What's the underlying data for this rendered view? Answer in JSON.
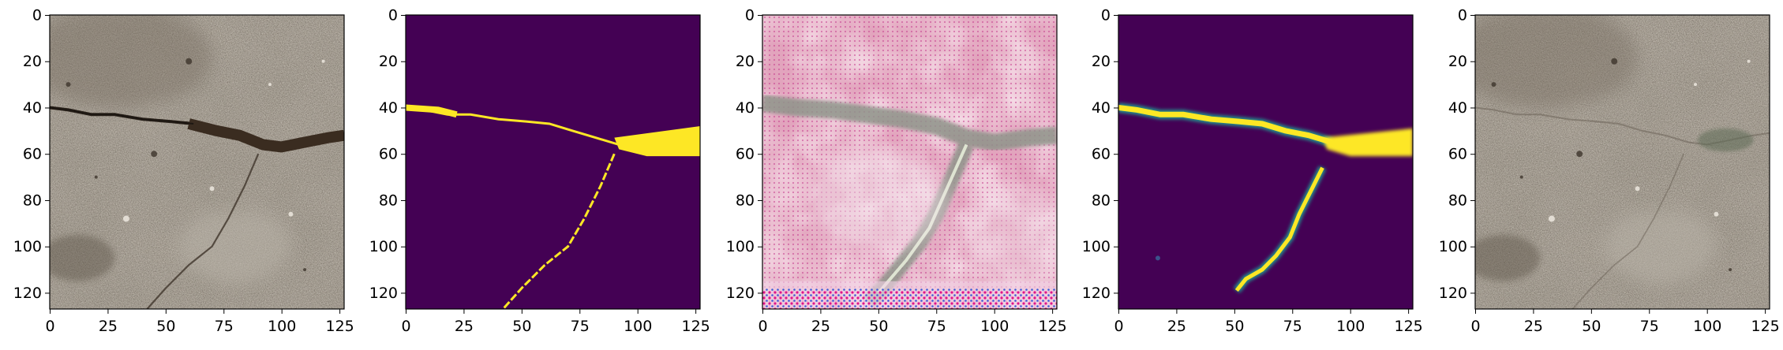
{
  "figure": {
    "panel_count": 5,
    "panels": [
      {
        "content": "concrete-surface-photo-with-crack"
      },
      {
        "content": "binary-crack-mask"
      },
      {
        "content": "pink-stylized-crack-texture"
      },
      {
        "content": "smooth-crack-probability-map"
      },
      {
        "content": "reconstructed-concrete-photo"
      }
    ],
    "y_ticks": [
      "0",
      "20",
      "40",
      "60",
      "80",
      "100",
      "120"
    ],
    "x_ticks": [
      "0",
      "25",
      "50",
      "75",
      "100",
      "125"
    ],
    "colors": {
      "mask_background": "#440154",
      "mask_foreground": "#fde725",
      "mask_mid": "#21918c",
      "concrete": "#a59e93",
      "pink": "#e2a4bd"
    }
  },
  "chart_data": [
    {
      "type": "image",
      "xlim": [
        0,
        127
      ],
      "ylim": [
        127,
        0
      ],
      "x_ticks": [
        0,
        25,
        50,
        75,
        100,
        125
      ],
      "y_ticks": [
        0,
        20,
        40,
        60,
        80,
        100,
        120
      ]
    },
    {
      "type": "image",
      "xlim": [
        0,
        127
      ],
      "ylim": [
        127,
        0
      ],
      "x_ticks": [
        0,
        25,
        50,
        75,
        100,
        125
      ],
      "y_ticks": [
        0,
        20,
        40,
        60,
        80,
        100,
        120
      ]
    },
    {
      "type": "image",
      "xlim": [
        0,
        127
      ],
      "ylim": [
        127,
        0
      ],
      "x_ticks": [
        0,
        25,
        50,
        75,
        100,
        125
      ],
      "y_ticks": [
        0,
        20,
        40,
        60,
        80,
        100,
        120
      ]
    },
    {
      "type": "image",
      "xlim": [
        0,
        127
      ],
      "ylim": [
        127,
        0
      ],
      "x_ticks": [
        0,
        25,
        50,
        75,
        100,
        125
      ],
      "y_ticks": [
        0,
        20,
        40,
        60,
        80,
        100,
        120
      ]
    },
    {
      "type": "image",
      "xlim": [
        0,
        127
      ],
      "ylim": [
        127,
        0
      ],
      "x_ticks": [
        0,
        25,
        50,
        75,
        100,
        125
      ],
      "y_ticks": [
        0,
        20,
        40,
        60,
        80,
        100,
        120
      ]
    }
  ]
}
